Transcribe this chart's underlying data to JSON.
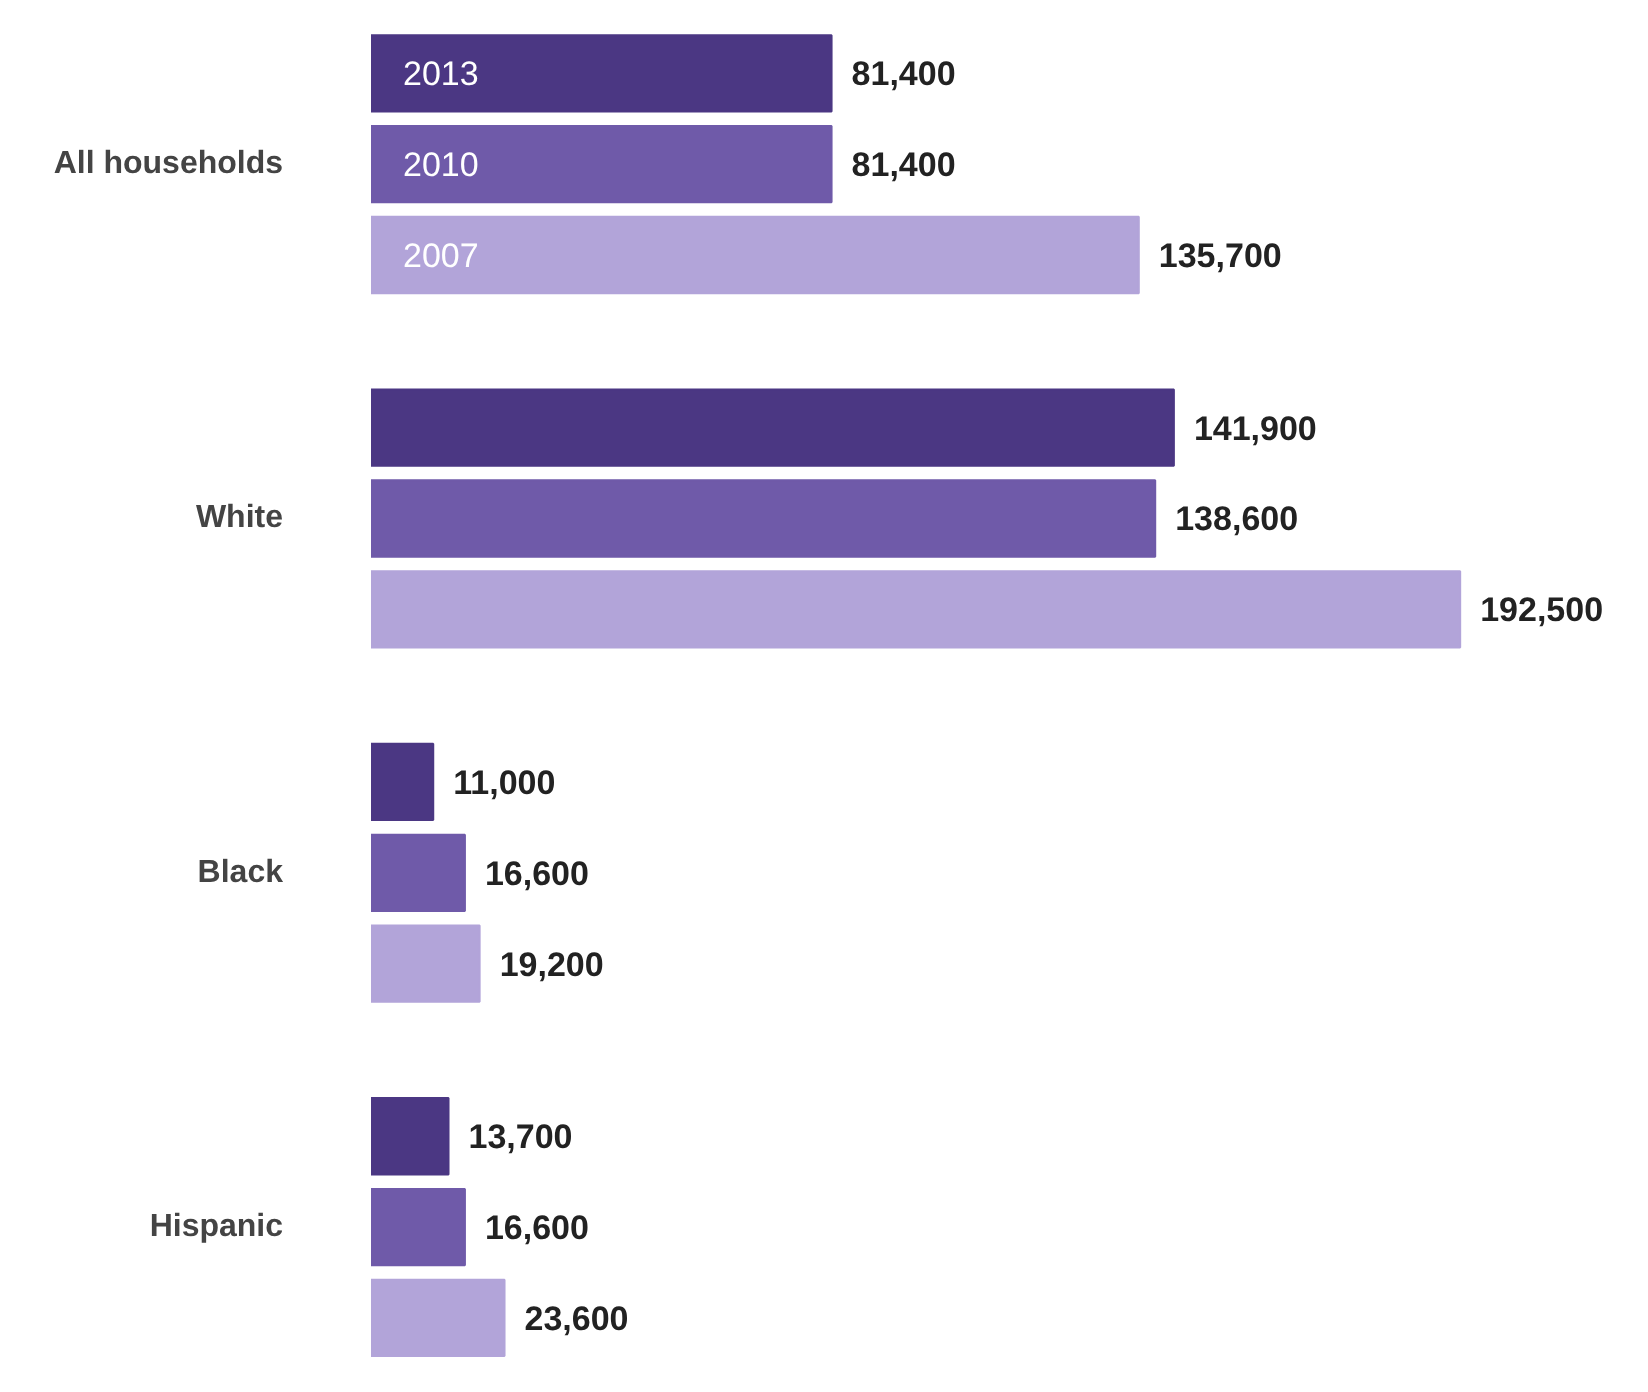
{
  "chart_data": {
    "type": "bar",
    "orientation": "horizontal",
    "categories": [
      "All households",
      "White",
      "Black",
      "Hispanic"
    ],
    "series": [
      {
        "name": "2013",
        "color": "#4b3783",
        "values": [
          81400,
          141900,
          11000,
          13700
        ],
        "value_labels": [
          "81,400",
          "141,900",
          "11,000",
          "13,700"
        ]
      },
      {
        "name": "2010",
        "color": "#6f5aa9",
        "values": [
          81400,
          138600,
          16600,
          16600
        ],
        "value_labels": [
          "81,400",
          "138,600",
          "16,600",
          "16,600"
        ]
      },
      {
        "name": "2007",
        "color": "#b2a4d9",
        "values": [
          135700,
          192500,
          19200,
          23600
        ],
        "value_labels": [
          "135,700",
          "192,500",
          "19,200",
          "23,600"
        ]
      }
    ],
    "grid": false
  }
}
